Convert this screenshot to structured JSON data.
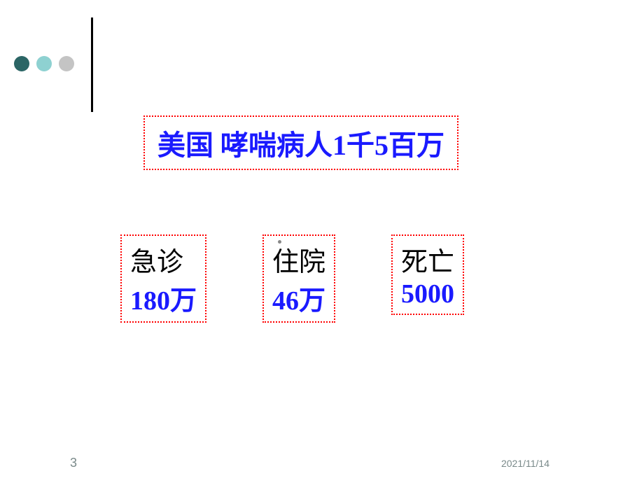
{
  "decoration": {
    "dots": [
      {
        "color": "#2b6565"
      },
      {
        "color": "#8ed1d1"
      },
      {
        "color": "#c4c4c4"
      }
    ],
    "line_color": "#000000"
  },
  "title": {
    "text": "美国 哮喘病人1千5百万",
    "color": "#1a1aff",
    "border_color": "#ff0000"
  },
  "stats": [
    {
      "label": "急诊",
      "value": "180万"
    },
    {
      "label": "住院",
      "value": "46万"
    },
    {
      "label": "死亡",
      "value": "5000"
    }
  ],
  "footer": {
    "page_number": "3",
    "date": "2021/11/14"
  },
  "colors": {
    "text_blue": "#1a1aff",
    "text_black": "#000000",
    "border_red": "#ff0000",
    "footer_gray": "#7a8a8a"
  }
}
